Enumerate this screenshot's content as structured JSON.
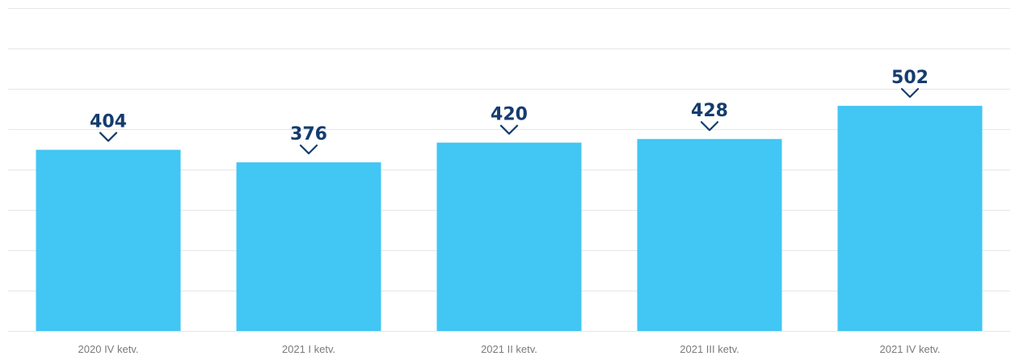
{
  "chart_data": {
    "type": "bar",
    "categories": [
      "2020 IV ketv.",
      "2021 I ketv.",
      "2021 II ketv.",
      "2021 III ketv.",
      "2021 IV ketv."
    ],
    "values": [
      404,
      376,
      420,
      428,
      502
    ],
    "title": "",
    "xlabel": "",
    "ylabel": "",
    "ylim": [
      0,
      720
    ],
    "grid": true,
    "data_labels": true,
    "colors": {
      "bar": "#42c6f4",
      "label": "#143c6e",
      "grid": "#e6e6e6",
      "tick_text": "#7a7a7a"
    }
  }
}
